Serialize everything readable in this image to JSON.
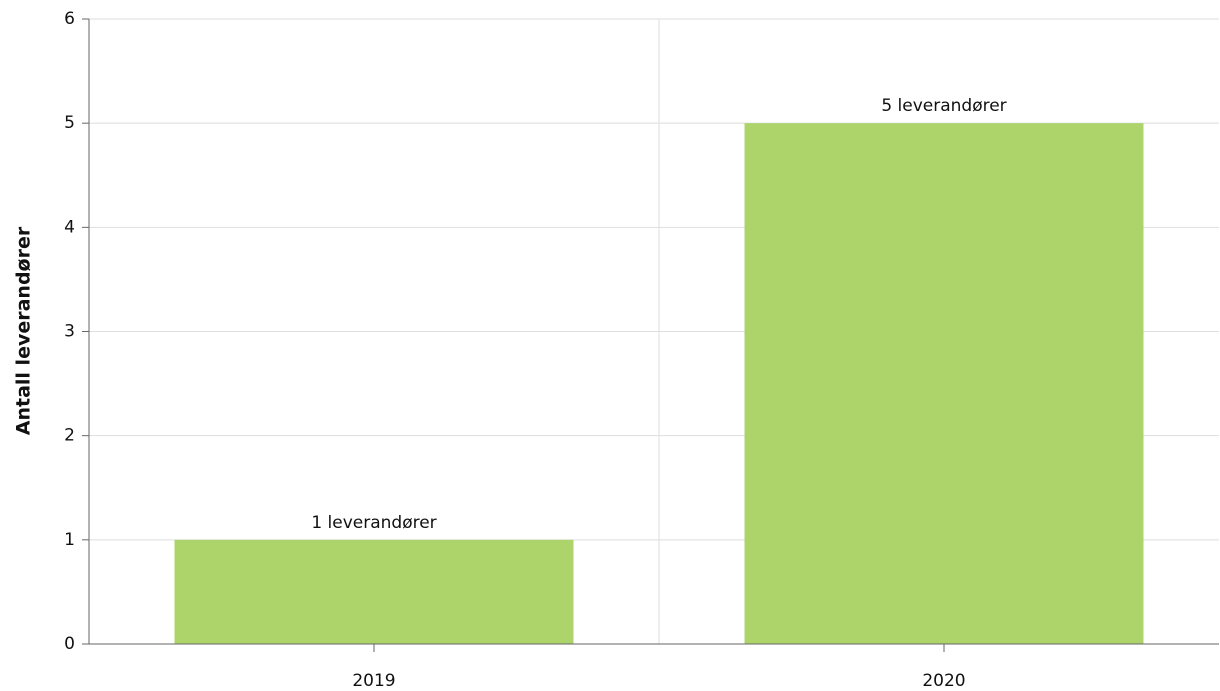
{
  "chart_data": {
    "type": "bar",
    "y_axis_label": "Antall leverandører",
    "categories": [
      "2019",
      "2020"
    ],
    "values": [
      1,
      5
    ],
    "value_labels": [
      "1 leverandører",
      "5 leverandører"
    ],
    "color": "#acd46a",
    "ylim": [
      0,
      6
    ],
    "yticks": [
      0,
      1,
      2,
      3,
      4,
      5,
      6
    ],
    "grid": true
  }
}
